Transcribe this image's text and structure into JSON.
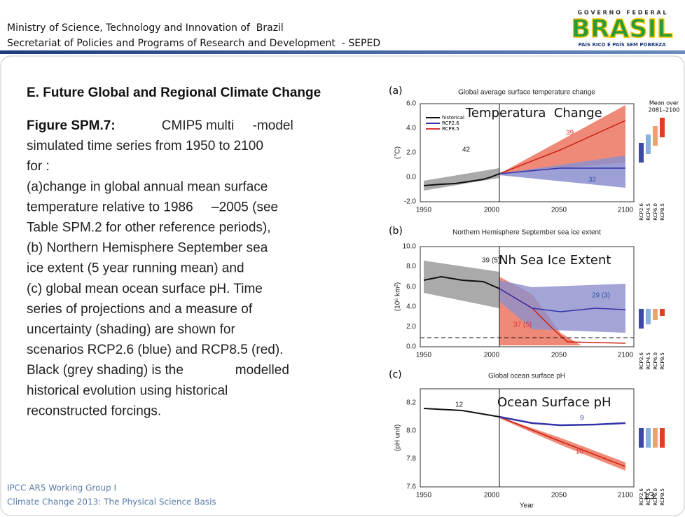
{
  "header": {
    "lines": [
      "Ministry of Science, Technology and Innovation of  Brazil",
      "Secretariat of Policies and Programs of Research and Development  - SEPED"
    ],
    "logo": {
      "top": "G O V E R N O   F E D E R A L",
      "name": "BRASIL",
      "tagline": "PAÍS RICO É PAÍS SEM POBREZA"
    }
  },
  "content": {
    "heading": "E. Future Global and Regional Climate Change",
    "figure_label": "Figure SPM.7:",
    "lines": [
      "          CMIP5 multi     -model",
      "simulated time series from 1950 to 2100",
      "for :",
      "(a)change in global annual mean surface",
      "temperature relative to 1986     –2005 (see",
      "Table SPM.2 for other reference periods),",
      "(b) Northern Hemisphere September sea",
      "ice extent (5 year running mean) and",
      "(c) global mean ocean surface pH. Time",
      "series of projections and a measure of",
      "uncertainty (shading) are shown for",
      "scenarios RCP2.6 (blue) and RCP8.5 (red).",
      "Black (grey shading) is the              modelled",
      "historical evolution using historical",
      "reconstructed forcings."
    ]
  },
  "figure": {
    "xticks": [
      "1950",
      "2000",
      "2050",
      "2100"
    ],
    "xlabel": "Year",
    "scenarios": [
      "RCP2.6",
      "RCP4.5",
      "RCP6.0",
      "RCP8.5"
    ],
    "panels": [
      {
        "label": "(a)",
        "title": "Global average surface temperature change",
        "ylabel": "(°C)",
        "yticks": [
          "6.0",
          "4.0",
          "2.0",
          "0.0",
          "-2.0"
        ],
        "overlay": "Temperatura  Change",
        "legend": [
          "historical",
          "RCP2.6",
          "RCP8.5"
        ],
        "mean_note": [
          "Mean over",
          "2081–2100"
        ],
        "annotations": [
          "42",
          "39",
          "32"
        ]
      },
      {
        "label": "(b)",
        "title": "Northern Hemisphere September sea ice extent",
        "ylabel": "(10⁶ km²)",
        "yticks": [
          "10.0",
          "8.0",
          "6.0",
          "4.0",
          "2.0",
          "0.0"
        ],
        "overlay": "Nh Sea Ice Extent",
        "annotations": [
          "39 (5)",
          "29 (3)",
          "37 (5)"
        ]
      },
      {
        "label": "(c)",
        "title": "Global ocean surface pH",
        "ylabel": "(pH unit)",
        "yticks": [
          "8.2",
          "8.0",
          "7.8",
          "7.6"
        ],
        "overlay": "Ocean Surface pH",
        "annotations": [
          "12",
          "9",
          "10"
        ]
      }
    ]
  },
  "footer": {
    "lines": [
      "IPCC AR5 Working Group I",
      "Climate Change 2013: The Physical Science Basis"
    ],
    "page": "13"
  }
}
